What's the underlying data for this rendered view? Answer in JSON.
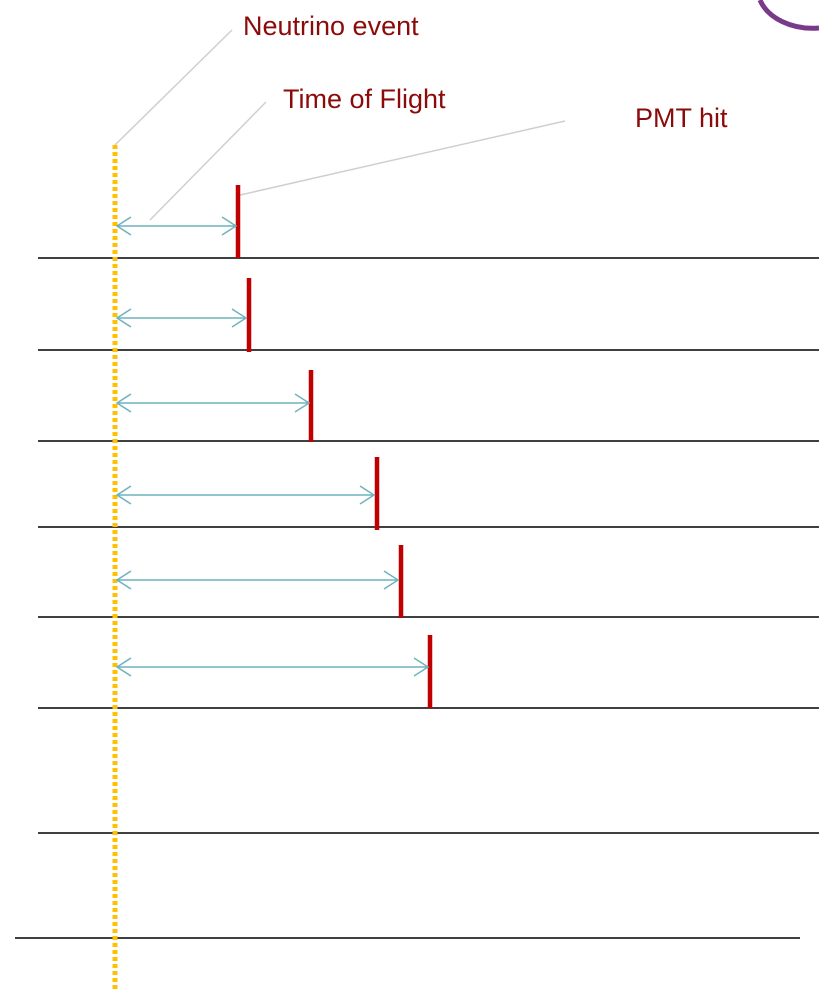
{
  "annotations": [
    "Neutrino event",
    "Time of Flight",
    "PMT hit"
  ]
}
